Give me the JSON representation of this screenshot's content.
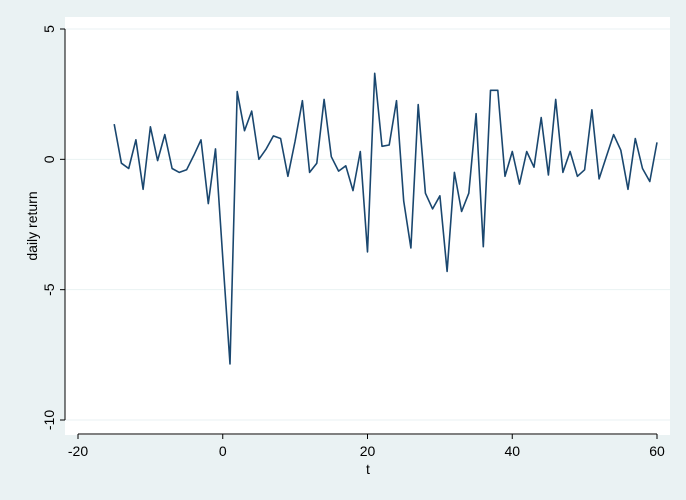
{
  "chart_data": {
    "type": "line",
    "xlabel": "t",
    "ylabel": "daily return",
    "xlim": [
      -20,
      60
    ],
    "ylim": [
      -10,
      5
    ],
    "xticks": [
      -20,
      0,
      20,
      40,
      60
    ],
    "yticks": [
      5,
      0,
      -5,
      -10
    ],
    "grid": "horizontal",
    "series_color": "#1a476f",
    "plot_bg": "#ffffff",
    "outer_bg": "#eaf2f3",
    "grid_color": "#eaf2f3",
    "series": [
      {
        "x": [
          -15,
          -14,
          -13,
          -12,
          -11,
          -10,
          -9,
          -8,
          -7,
          -6,
          -5,
          -4,
          -3,
          -2,
          -1,
          0,
          1,
          2,
          3,
          4,
          5,
          6,
          7,
          8,
          9,
          10,
          11,
          12,
          13,
          14,
          15,
          16,
          17,
          18,
          19,
          20,
          21,
          22,
          23,
          24,
          25,
          26,
          27,
          28,
          29,
          30,
          31,
          32,
          33,
          34,
          35,
          36,
          37,
          38,
          39,
          40,
          41,
          42,
          43,
          44,
          45,
          46,
          47,
          48,
          49,
          50,
          51,
          52,
          53,
          54,
          55,
          56,
          57,
          58,
          59,
          60
        ],
        "y": [
          1.35,
          -0.15,
          -0.35,
          0.75,
          -1.15,
          1.25,
          -0.05,
          0.95,
          -0.35,
          -0.5,
          -0.4,
          0.15,
          0.75,
          -1.7,
          0.4,
          -3.8,
          -7.85,
          2.6,
          1.1,
          1.85,
          0.0,
          0.4,
          0.9,
          0.8,
          -0.65,
          0.7,
          2.25,
          -0.5,
          -0.15,
          2.3,
          0.1,
          -0.45,
          -0.25,
          -1.2,
          0.3,
          -3.55,
          3.3,
          0.5,
          0.55,
          2.25,
          -1.6,
          -3.4,
          2.1,
          -1.3,
          -1.9,
          -1.4,
          -4.3,
          -0.5,
          -2.0,
          -1.3,
          1.75,
          -3.35,
          2.65,
          2.65,
          -0.65,
          0.3,
          -0.95,
          0.3,
          -0.3,
          1.6,
          -0.6,
          2.3,
          -0.5,
          0.3,
          -0.65,
          -0.4,
          1.9,
          -0.75,
          0.1,
          0.95,
          0.35,
          -1.15,
          0.8,
          -0.35,
          -0.85,
          0.65
        ]
      }
    ]
  }
}
